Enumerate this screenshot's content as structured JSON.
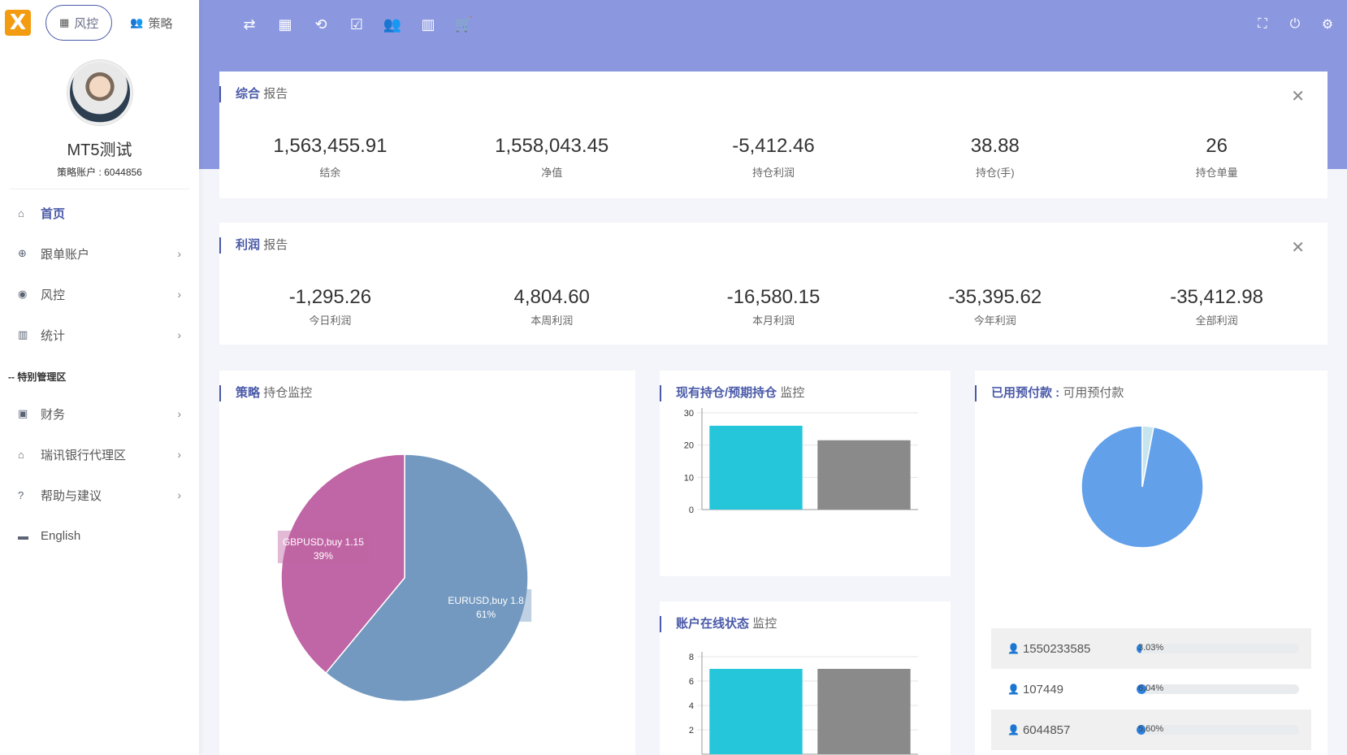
{
  "sidebar": {
    "logo_letter": "X",
    "tabs": [
      {
        "label": "风控",
        "icon": "grid-icon",
        "active": true
      },
      {
        "label": "策略",
        "icon": "users-icon",
        "active": false
      }
    ],
    "profile": {
      "name": "MT5测试",
      "account": "策略账户 : 6044856"
    },
    "nav": [
      {
        "label": "首页",
        "icon": "home-icon",
        "active": true,
        "has_children": false
      },
      {
        "label": "跟单账户",
        "icon": "globe-icon",
        "has_children": true
      },
      {
        "label": "风控",
        "icon": "aperture-icon",
        "has_children": true
      },
      {
        "label": "统计",
        "icon": "chart-icon",
        "has_children": true
      }
    ],
    "section_label": "-- 特别管理区",
    "nav2": [
      {
        "label": "财务",
        "icon": "money-icon",
        "has_children": true
      },
      {
        "label": "瑞讯银行代理区",
        "icon": "bank-icon",
        "has_children": true
      },
      {
        "label": "帮助与建议",
        "icon": "help-icon",
        "has_children": true
      },
      {
        "label": "English",
        "icon": "keyboard-icon",
        "has_children": false
      }
    ]
  },
  "topbar": {
    "left_icons": [
      "swap-icon",
      "dashboard-icon",
      "repeat-icon",
      "clipboard-check-icon",
      "group-icon",
      "bar-chart-icon",
      "cart-icon"
    ],
    "right_icons": [
      "fullscreen-icon",
      "power-icon",
      "settings-icon"
    ]
  },
  "summary_report": {
    "title_bold": "综合",
    "title_rest": "报告",
    "stats": [
      {
        "value": "1,563,455.91",
        "label": "结余"
      },
      {
        "value": "1,558,043.45",
        "label": "净值"
      },
      {
        "value": "-5,412.46",
        "label": "持仓利润"
      },
      {
        "value": "38.88",
        "label": "持仓(手)"
      },
      {
        "value": "26",
        "label": "持仓单量"
      }
    ]
  },
  "profit_report": {
    "title_bold": "利润",
    "title_rest": "报告",
    "stats": [
      {
        "value": "-1,295.26",
        "label": "今日利润"
      },
      {
        "value": "4,804.60",
        "label": "本周利润"
      },
      {
        "value": "-16,580.15",
        "label": "本月利润"
      },
      {
        "value": "-35,395.62",
        "label": "今年利润"
      },
      {
        "value": "-35,412.98",
        "label": "全部利润"
      }
    ]
  },
  "strategy_card": {
    "title_bold": "策略",
    "title_rest": "持仓监控"
  },
  "position_card": {
    "title_bold": "现有持仓/预期持仓",
    "title_rest": "监控"
  },
  "online_card": {
    "title_bold": "账户在线状态",
    "title_rest": "监控"
  },
  "prepay_card": {
    "title_bold": "已用预付款 :",
    "title_rest": "可用预付款"
  },
  "accounts": [
    {
      "id": "1550233585",
      "percent_text": "3.03%",
      "percent": 3.03
    },
    {
      "id": "107449",
      "percent_text": "6.04%",
      "percent": 6.04
    },
    {
      "id": "6044857",
      "percent_text": "5.60%",
      "percent": 5.6
    }
  ],
  "chart_data": [
    {
      "type": "pie",
      "labels": [
        "EURUSD,buy 1.8",
        "GBPUSD,buy 1.15"
      ],
      "values": [
        61,
        39
      ],
      "percent_labels": [
        "61%",
        "39%"
      ],
      "colors": [
        "#7399c0",
        "#c065a5"
      ]
    },
    {
      "type": "bar",
      "categories": [
        "",
        ""
      ],
      "values": [
        26,
        21.5
      ],
      "colors": [
        "#26c6da",
        "#8a8a8a"
      ],
      "yticks": [
        "0",
        "10",
        "20",
        "30"
      ],
      "ylim": [
        0,
        30
      ]
    },
    {
      "type": "bar",
      "categories": [
        "",
        ""
      ],
      "values": [
        7,
        7
      ],
      "colors": [
        "#26c6da",
        "#8a8a8a"
      ],
      "yticks": [
        "2",
        "4",
        "6",
        "8"
      ],
      "ylim": [
        0,
        8
      ]
    },
    {
      "type": "pie",
      "labels": [
        "",
        ""
      ],
      "values": [
        97,
        3
      ],
      "colors": [
        "#62a0ea",
        "#c6e5ee"
      ]
    }
  ]
}
